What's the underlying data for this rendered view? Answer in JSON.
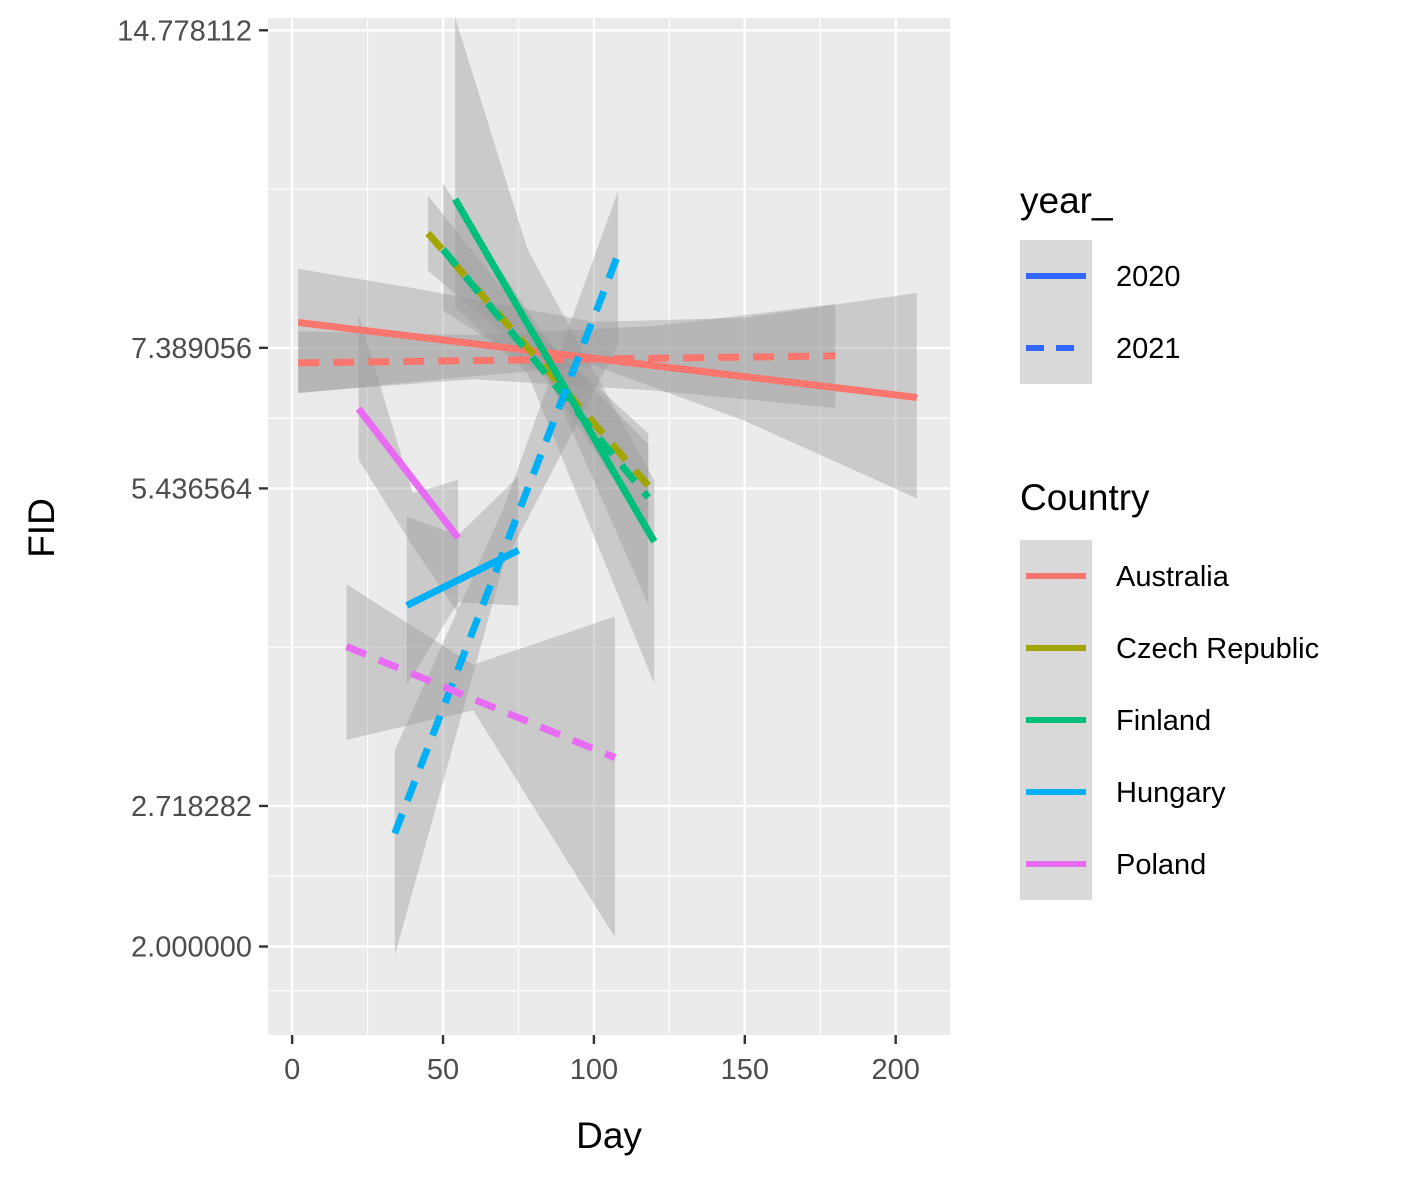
{
  "chart_data": {
    "type": "line",
    "xlabel": "Day",
    "ylabel": "FID",
    "x_ticks": [
      0,
      50,
      100,
      150,
      200
    ],
    "y_ticks": [
      "14.778112",
      "7.389056",
      "5.436564",
      "2.718282",
      "2.000000"
    ],
    "y_scale": "log",
    "xlim": [
      -8,
      218
    ],
    "ylim_log": [
      0.5,
      2.72
    ],
    "grid": true,
    "legend_position": "right",
    "legends": [
      {
        "title": "year_",
        "entries": [
          {
            "label": "2020",
            "linestyle": "solid",
            "color": "#3366FF"
          },
          {
            "label": "2021",
            "linestyle": "dashed",
            "color": "#3366FF"
          }
        ]
      },
      {
        "title": "Country",
        "entries": [
          {
            "label": "Australia",
            "color": "#F8766D"
          },
          {
            "label": "Czech Republic",
            "color": "#A3A500"
          },
          {
            "label": "Finland",
            "color": "#00BF7D"
          },
          {
            "label": "Hungary",
            "color": "#00B0F6"
          },
          {
            "label": "Poland",
            "color": "#E76BF3"
          }
        ]
      }
    ],
    "series": [
      {
        "country": "Australia",
        "year": "2020",
        "linestyle": "solid",
        "points": [
          [
            2,
            7.81
          ],
          [
            207,
            6.63
          ]
        ],
        "band": {
          "upper": [
            [
              2,
              8.78
            ],
            [
              40,
              8.42
            ],
            [
              100,
              7.82
            ],
            [
              150,
              7.89
            ],
            [
              207,
              8.33
            ]
          ],
          "lower": [
            [
              2,
              6.69
            ],
            [
              40,
              6.86
            ],
            [
              100,
              7.11
            ],
            [
              150,
              6.3
            ],
            [
              207,
              5.32
            ]
          ]
        }
      },
      {
        "country": "Australia",
        "year": "2021",
        "linestyle": "dashed",
        "points": [
          [
            2,
            7.15
          ],
          [
            180,
            7.26
          ]
        ],
        "band": {
          "upper": [
            [
              2,
              7.66
            ],
            [
              60,
              7.6
            ],
            [
              120,
              7.75
            ],
            [
              180,
              8.13
            ]
          ],
          "lower": [
            [
              2,
              6.7
            ],
            [
              60,
              6.9
            ],
            [
              120,
              6.73
            ],
            [
              180,
              6.48
            ]
          ]
        }
      },
      {
        "country": "Czech Republic",
        "year": "2021",
        "linestyle": "dashed",
        "points": [
          [
            45,
            9.49
          ],
          [
            118,
            5.47
          ]
        ],
        "band": {
          "upper": [
            [
              45,
              10.3
            ],
            [
              80,
              7.72
            ],
            [
              118,
              5.99
            ]
          ],
          "lower": [
            [
              45,
              8.74
            ],
            [
              80,
              7.2
            ],
            [
              118,
              4.95
            ]
          ]
        }
      },
      {
        "country": "Finland",
        "year": "2020",
        "linestyle": "solid",
        "points": [
          [
            54,
            10.22
          ],
          [
            120,
            4.84
          ]
        ],
        "band": {
          "upper": [
            [
              54,
              15.2
            ],
            [
              78,
              9.16
            ],
            [
              120,
              5.53
            ]
          ],
          "lower": [
            [
              54,
              8.07
            ],
            [
              78,
              6.99
            ],
            [
              120,
              3.55
            ]
          ]
        }
      },
      {
        "country": "Finland",
        "year": "2021",
        "linestyle": "dashed",
        "points": [
          [
            50,
            9.16
          ],
          [
            118,
            5.33
          ]
        ],
        "band": {
          "upper": [
            [
              50,
              10.58
            ],
            [
              85,
              7.48
            ],
            [
              118,
              6.13
            ]
          ],
          "lower": [
            [
              50,
              8.01
            ],
            [
              85,
              6.92
            ],
            [
              118,
              4.22
            ]
          ]
        }
      },
      {
        "country": "Hungary",
        "year": "2020",
        "linestyle": "solid",
        "points": [
          [
            38,
            4.21
          ],
          [
            75,
            4.75
          ]
        ],
        "band": {
          "upper": [
            [
              38,
              5.11
            ],
            [
              55,
              4.91
            ],
            [
              75,
              5.58
            ]
          ],
          "lower": [
            [
              38,
              3.54
            ],
            [
              55,
              4.24
            ],
            [
              75,
              4.21
            ]
          ]
        }
      },
      {
        "country": "Hungary",
        "year": "2021",
        "linestyle": "dashed",
        "points": [
          [
            34,
            2.56
          ],
          [
            108,
            9.06
          ]
        ],
        "band": {
          "upper": [
            [
              34,
              3.07
            ],
            [
              70,
              5.2
            ],
            [
              108,
              10.41
            ]
          ],
          "lower": [
            [
              34,
              1.96
            ],
            [
              70,
              4.6
            ],
            [
              108,
              7.43
            ]
          ]
        }
      },
      {
        "country": "Poland",
        "year": "2020",
        "linestyle": "solid",
        "points": [
          [
            22,
            6.47
          ],
          [
            55,
            4.88
          ]
        ],
        "band": {
          "upper": [
            [
              22,
              7.95
            ],
            [
              40,
              5.38
            ],
            [
              55,
              5.54
            ]
          ],
          "lower": [
            [
              22,
              5.79
            ],
            [
              40,
              4.79
            ],
            [
              55,
              4.14
            ]
          ]
        }
      },
      {
        "country": "Poland",
        "year": "2021",
        "linestyle": "dashed",
        "points": [
          [
            18,
            3.85
          ],
          [
            107,
            3.02
          ]
        ],
        "band": {
          "upper": [
            [
              18,
              4.41
            ],
            [
              60,
              3.7
            ],
            [
              107,
              4.11
            ]
          ],
          "lower": [
            [
              18,
              3.14
            ],
            [
              60,
              3.35
            ],
            [
              107,
              2.04
            ]
          ]
        }
      }
    ]
  }
}
